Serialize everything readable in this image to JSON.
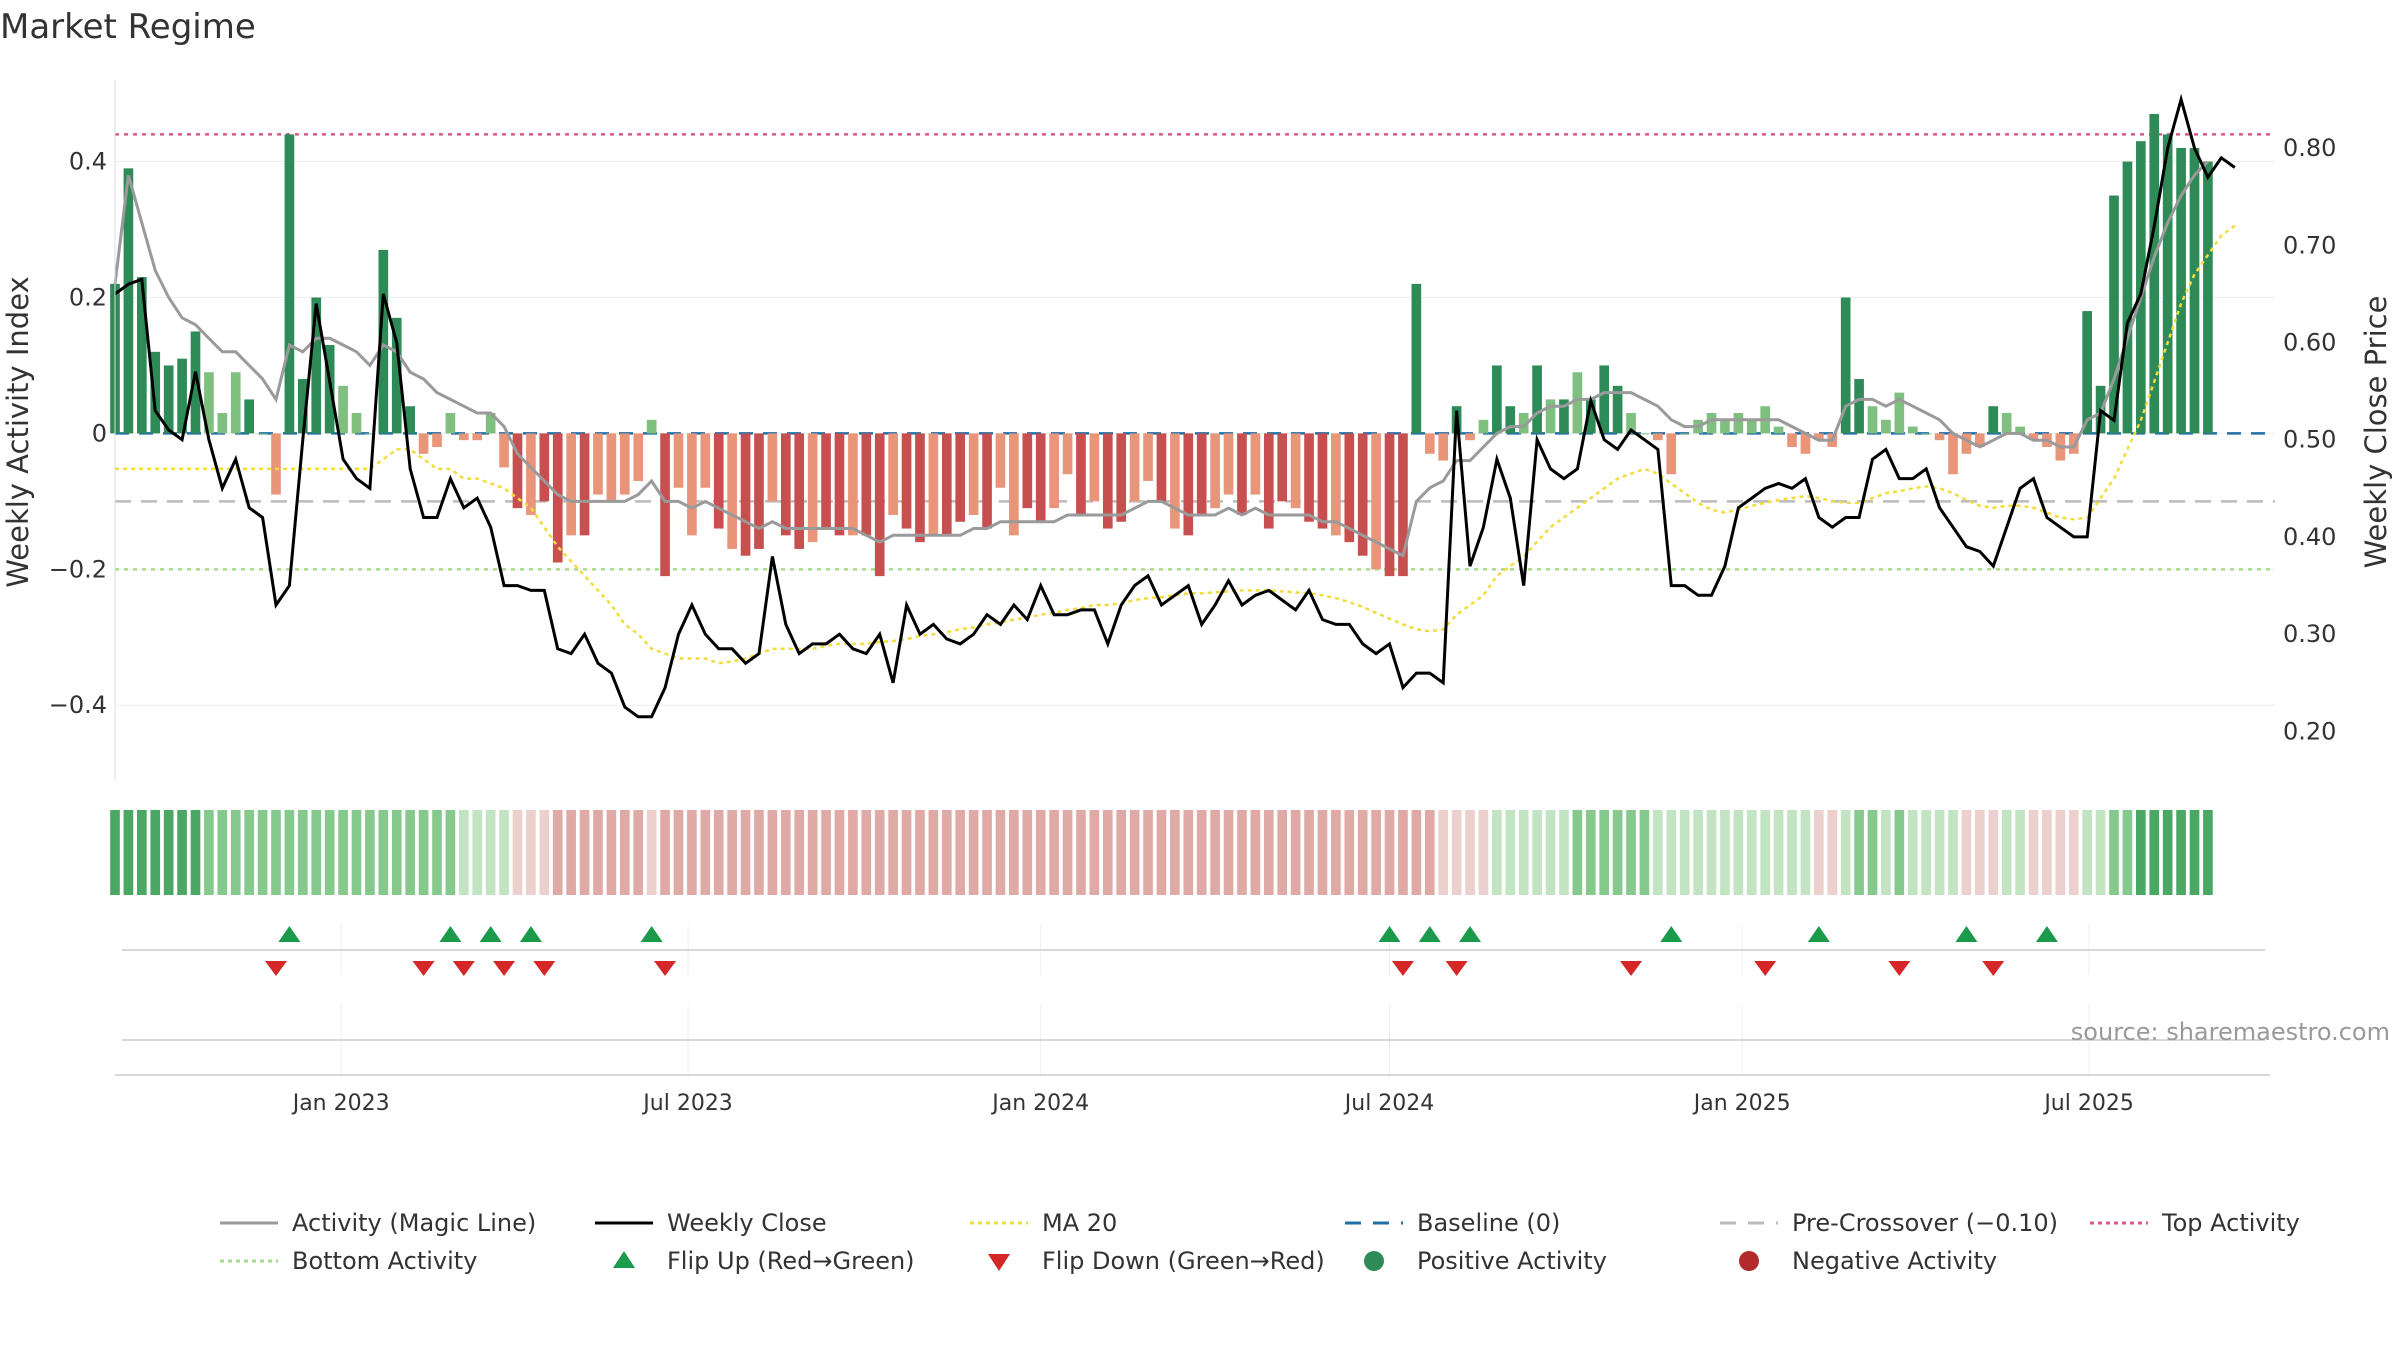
{
  "title": "Market Regime",
  "source": "source: sharemaestro.com",
  "colors": {
    "pos_dark": "#2e8b57",
    "pos_light": "#7fbf7f",
    "neg_dark": "#c84f4f",
    "neg_light": "#e8957a",
    "magic": "#9a9a9a",
    "close": "#000000",
    "ma": "#f2dc3c",
    "baseline": "#1f6fa8",
    "pre": "#bbbbbb",
    "top": "#d65a8a",
    "bottom": "#a8dc88",
    "flip_up": "#1a9a4a",
    "flip_down": "#d62728"
  },
  "chart_data": {
    "type": "bar",
    "title": "Market Regime",
    "ylabel_left": "Weekly Activity Index",
    "ylabel_right": "Weekly Close Price",
    "ylim_left": [
      -0.51,
      0.52
    ],
    "ylim_right": [
      0.15,
      0.87
    ],
    "yticks_left": [
      "0.4",
      "0.2",
      "0",
      "−0.2",
      "−0.4"
    ],
    "yticks_left_values": [
      0.4,
      0.2,
      0,
      -0.2,
      -0.4
    ],
    "yticks_right": [
      "0.80",
      "0.70",
      "0.60",
      "0.50",
      "0.40",
      "0.30",
      "0.20"
    ],
    "yticks_right_values": [
      0.8,
      0.7,
      0.6,
      0.5,
      0.4,
      0.3,
      0.2
    ],
    "x_range": [
      "2022-09-05",
      "2025-10-06"
    ],
    "xticks": [
      {
        "date": "2023-01-01",
        "label": "Jan 2023"
      },
      {
        "date": "2023-07-01",
        "label": "Jul 2023"
      },
      {
        "date": "2024-01-01",
        "label": "Jan 2024"
      },
      {
        "date": "2024-07-01",
        "label": "Jul 2024"
      },
      {
        "date": "2025-01-01",
        "label": "Jan 2025"
      },
      {
        "date": "2025-07-01",
        "label": "Jul 2025"
      }
    ],
    "start_week": "2022-09-05",
    "reference_lines": {
      "baseline": 0,
      "pre_crossover": -0.1,
      "top_activity": 0.44,
      "bottom_activity": -0.2
    },
    "activity": [
      0.22,
      0.39,
      0.23,
      0.12,
      0.1,
      0.11,
      0.15,
      0.09,
      0.03,
      0.09,
      0.05,
      0.0,
      -0.09,
      0.44,
      0.08,
      0.2,
      0.13,
      0.07,
      0.03,
      0.0,
      0.27,
      0.17,
      0.04,
      -0.03,
      -0.02,
      0.03,
      -0.01,
      -0.01,
      0.03,
      -0.05,
      -0.11,
      -0.12,
      -0.1,
      -0.19,
      -0.15,
      -0.15,
      -0.09,
      -0.1,
      -0.09,
      -0.07,
      0.02,
      -0.21,
      -0.08,
      -0.15,
      -0.08,
      -0.14,
      -0.17,
      -0.18,
      -0.17,
      -0.1,
      -0.15,
      -0.17,
      -0.16,
      -0.14,
      -0.15,
      -0.15,
      -0.15,
      -0.21,
      -0.12,
      -0.14,
      -0.16,
      -0.15,
      -0.15,
      -0.13,
      -0.12,
      -0.14,
      -0.08,
      -0.15,
      -0.11,
      -0.13,
      -0.11,
      -0.06,
      -0.12,
      -0.1,
      -0.14,
      -0.13,
      -0.1,
      -0.07,
      -0.1,
      -0.14,
      -0.15,
      -0.12,
      -0.11,
      -0.09,
      -0.12,
      -0.09,
      -0.14,
      -0.1,
      -0.11,
      -0.13,
      -0.14,
      -0.15,
      -0.16,
      -0.18,
      -0.2,
      -0.21,
      -0.21,
      0.22,
      -0.03,
      -0.04,
      0.04,
      -0.01,
      0.02,
      0.1,
      0.04,
      0.03,
      0.1,
      0.05,
      0.05,
      0.09,
      0.05,
      0.1,
      0.07,
      0.03,
      0.0,
      -0.01,
      -0.06,
      0.0,
      0.02,
      0.03,
      0.02,
      0.03,
      0.02,
      0.04,
      0.01,
      -0.02,
      -0.03,
      -0.01,
      -0.02,
      0.2,
      0.08,
      0.04,
      0.02,
      0.06,
      0.01,
      0.0,
      -0.01,
      -0.06,
      -0.03,
      -0.02,
      0.04,
      0.03,
      0.01,
      -0.01,
      -0.02,
      -0.04,
      -0.03,
      0.18,
      0.07,
      0.35,
      0.4,
      0.43,
      0.47,
      0.44,
      0.42,
      0.42,
      0.4
    ],
    "activity_ma": [
      0.22,
      0.38,
      0.31,
      0.24,
      0.2,
      0.17,
      0.16,
      0.14,
      0.12,
      0.12,
      0.1,
      0.08,
      0.05,
      0.13,
      0.12,
      0.14,
      0.14,
      0.13,
      0.12,
      0.1,
      0.13,
      0.12,
      0.09,
      0.08,
      0.06,
      0.05,
      0.04,
      0.03,
      0.03,
      0.01,
      -0.03,
      -0.05,
      -0.07,
      -0.09,
      -0.1,
      -0.1,
      -0.1,
      -0.1,
      -0.1,
      -0.09,
      -0.07,
      -0.1,
      -0.1,
      -0.11,
      -0.1,
      -0.11,
      -0.12,
      -0.13,
      -0.14,
      -0.13,
      -0.14,
      -0.14,
      -0.14,
      -0.14,
      -0.14,
      -0.14,
      -0.15,
      -0.16,
      -0.15,
      -0.15,
      -0.15,
      -0.15,
      -0.15,
      -0.15,
      -0.14,
      -0.14,
      -0.13,
      -0.13,
      -0.13,
      -0.13,
      -0.13,
      -0.12,
      -0.12,
      -0.12,
      -0.12,
      -0.12,
      -0.11,
      -0.1,
      -0.1,
      -0.11,
      -0.12,
      -0.12,
      -0.12,
      -0.11,
      -0.12,
      -0.11,
      -0.12,
      -0.12,
      -0.12,
      -0.12,
      -0.13,
      -0.13,
      -0.14,
      -0.15,
      -0.16,
      -0.17,
      -0.18,
      -0.1,
      -0.08,
      -0.07,
      -0.04,
      -0.04,
      -0.02,
      0.0,
      0.01,
      0.01,
      0.03,
      0.04,
      0.04,
      0.05,
      0.05,
      0.06,
      0.06,
      0.06,
      0.05,
      0.04,
      0.02,
      0.01,
      0.01,
      0.02,
      0.02,
      0.02,
      0.02,
      0.02,
      0.02,
      0.01,
      0.0,
      -0.01,
      -0.01,
      0.04,
      0.05,
      0.05,
      0.04,
      0.05,
      0.04,
      0.03,
      0.02,
      0.0,
      -0.01,
      -0.02,
      -0.01,
      0.0,
      0.0,
      -0.01,
      -0.01,
      -0.02,
      -0.02,
      0.02,
      0.03,
      0.08,
      0.14,
      0.2,
      0.26,
      0.31,
      0.35,
      0.38,
      0.4
    ],
    "weekly_close": [
      0.65,
      0.66,
      0.665,
      0.53,
      0.51,
      0.5,
      0.57,
      0.5,
      0.45,
      0.48,
      0.43,
      0.42,
      0.33,
      0.35,
      0.5,
      0.64,
      0.56,
      0.48,
      0.46,
      0.45,
      0.65,
      0.6,
      0.47,
      0.42,
      0.42,
      0.46,
      0.43,
      0.44,
      0.41,
      0.35,
      0.35,
      0.345,
      0.345,
      0.285,
      0.28,
      0.3,
      0.27,
      0.26,
      0.225,
      0.215,
      0.215,
      0.245,
      0.3,
      0.33,
      0.3,
      0.285,
      0.285,
      0.27,
      0.28,
      0.38,
      0.31,
      0.28,
      0.29,
      0.29,
      0.3,
      0.285,
      0.28,
      0.3,
      0.25,
      0.33,
      0.3,
      0.31,
      0.295,
      0.29,
      0.3,
      0.32,
      0.31,
      0.33,
      0.315,
      0.35,
      0.32,
      0.32,
      0.325,
      0.325,
      0.29,
      0.33,
      0.35,
      0.36,
      0.33,
      0.34,
      0.35,
      0.31,
      0.33,
      0.355,
      0.33,
      0.34,
      0.345,
      0.335,
      0.325,
      0.345,
      0.315,
      0.31,
      0.31,
      0.29,
      0.28,
      0.29,
      0.245,
      0.26,
      0.26,
      0.25,
      0.53,
      0.37,
      0.41,
      0.48,
      0.44,
      0.35,
      0.5,
      0.47,
      0.46,
      0.47,
      0.54,
      0.5,
      0.49,
      0.51,
      0.5,
      0.49,
      0.35,
      0.35,
      0.34,
      0.34,
      0.37,
      0.43,
      0.44,
      0.45,
      0.455,
      0.45,
      0.46,
      0.42,
      0.41,
      0.42,
      0.42,
      0.48,
      0.49,
      0.46,
      0.46,
      0.47,
      0.43,
      0.41,
      0.39,
      0.385,
      0.37,
      0.41,
      0.45,
      0.46,
      0.42,
      0.41,
      0.4,
      0.4,
      0.53,
      0.52,
      0.62,
      0.65,
      0.72,
      0.8,
      0.85,
      0.8,
      0.77,
      0.79,
      0.78
    ],
    "close_ma20": [
      0.47,
      0.47,
      0.47,
      0.47,
      0.47,
      0.47,
      0.47,
      0.47,
      0.47,
      0.47,
      0.47,
      0.47,
      0.47,
      0.47,
      0.47,
      0.47,
      0.47,
      0.47,
      0.47,
      0.47,
      0.48,
      0.49,
      0.49,
      0.48,
      0.47,
      0.47,
      0.46,
      0.46,
      0.455,
      0.45,
      0.44,
      0.43,
      0.41,
      0.39,
      0.375,
      0.36,
      0.345,
      0.33,
      0.31,
      0.3,
      0.285,
      0.28,
      0.275,
      0.275,
      0.275,
      0.27,
      0.272,
      0.275,
      0.28,
      0.285,
      0.285,
      0.285,
      0.285,
      0.288,
      0.29,
      0.29,
      0.29,
      0.292,
      0.293,
      0.295,
      0.298,
      0.3,
      0.302,
      0.305,
      0.307,
      0.31,
      0.312,
      0.315,
      0.317,
      0.32,
      0.322,
      0.325,
      0.327,
      0.33,
      0.33,
      0.332,
      0.335,
      0.337,
      0.338,
      0.34,
      0.342,
      0.342,
      0.343,
      0.344,
      0.345,
      0.345,
      0.345,
      0.344,
      0.343,
      0.342,
      0.34,
      0.337,
      0.333,
      0.328,
      0.322,
      0.316,
      0.31,
      0.305,
      0.303,
      0.305,
      0.32,
      0.33,
      0.34,
      0.36,
      0.37,
      0.38,
      0.395,
      0.41,
      0.42,
      0.43,
      0.44,
      0.45,
      0.46,
      0.465,
      0.47,
      0.465,
      0.455,
      0.445,
      0.435,
      0.428,
      0.425,
      0.428,
      0.432,
      0.435,
      0.438,
      0.44,
      0.442,
      0.44,
      0.437,
      0.435,
      0.435,
      0.44,
      0.445,
      0.447,
      0.45,
      0.452,
      0.45,
      0.445,
      0.438,
      0.432,
      0.43,
      0.432,
      0.432,
      0.43,
      0.425,
      0.42,
      0.418,
      0.42,
      0.44,
      0.46,
      0.49,
      0.52,
      0.56,
      0.6,
      0.64,
      0.67,
      0.69,
      0.71,
      0.72
    ],
    "flip_up_weeks": [
      13,
      25,
      28,
      31,
      40,
      95,
      98,
      101,
      116,
      127,
      138,
      144
    ],
    "flip_down_weeks": [
      12,
      23,
      26,
      29,
      32,
      41,
      96,
      100,
      113,
      123,
      133,
      140
    ]
  },
  "legend": [
    {
      "label": "Activity (Magic Line)",
      "kind": "line",
      "color": "#9a9a9a"
    },
    {
      "label": "Weekly Close",
      "kind": "line",
      "color": "#000000"
    },
    {
      "label": "MA 20",
      "kind": "dotted",
      "color": "#f2dc3c"
    },
    {
      "label": "Baseline (0)",
      "kind": "dashed",
      "color": "#1f6fa8"
    },
    {
      "label": "Pre-Crossover (−0.10)",
      "kind": "dashed",
      "color": "#bbbbbb"
    },
    {
      "label": "Top Activity",
      "kind": "dotted",
      "color": "#d65a8a"
    },
    {
      "label": "Bottom Activity",
      "kind": "dotted",
      "color": "#a8dc88"
    },
    {
      "label": "Flip Up (Red→Green)",
      "kind": "tri-up",
      "color": "#1a9a4a"
    },
    {
      "label": "Flip Down (Green→Red)",
      "kind": "tri-down",
      "color": "#d62728"
    },
    {
      "label": "Positive Activity",
      "kind": "dot",
      "color": "#2e8b57"
    },
    {
      "label": "Negative Activity",
      "kind": "dot",
      "color": "#b22a2a"
    }
  ]
}
